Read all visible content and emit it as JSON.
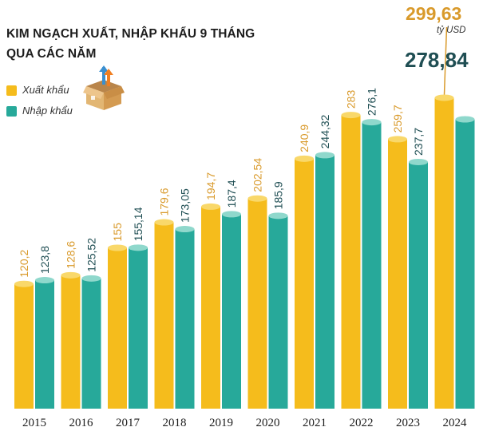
{
  "title_line1": "KIM NGẠCH XUẤT, NHẬP KHẨU 9 THÁNG",
  "title_line2": "QUA CÁC NĂM",
  "legend": {
    "export_label": "Xuất khẩu",
    "import_label": "Nhập khẩu"
  },
  "colors": {
    "export": "#F5BC1C",
    "export_top": "#F9D86A",
    "export_text": "#D99A2B",
    "import": "#27A99A",
    "import_top": "#8FD8CC",
    "import_text": "#1F4E53"
  },
  "highlight": {
    "export_value": "299,63",
    "unit": "tỷ USD",
    "import_value": "278,84"
  },
  "chart_data": {
    "type": "bar",
    "title": "KIM NGẠCH XUẤT, NHẬP KHẨU 9 THÁNG QUA CÁC NĂM",
    "unit": "tỷ USD",
    "categories": [
      "2015",
      "2016",
      "2017",
      "2018",
      "2019",
      "2020",
      "2021",
      "2022",
      "2023",
      "2024"
    ],
    "series": [
      {
        "name": "Xuất khẩu",
        "values": [
          120.2,
          128.6,
          155,
          179.6,
          194.7,
          202.54,
          240.9,
          283,
          259.7,
          299.63
        ],
        "labels": [
          "120,2",
          "128,6",
          "155",
          "179,6",
          "194,7",
          "202,54",
          "240,9",
          "283",
          "259,7",
          "299,63"
        ]
      },
      {
        "name": "Nhập khẩu",
        "values": [
          123.8,
          125.52,
          155.14,
          173.05,
          187.4,
          185.9,
          244.32,
          276.1,
          237.7,
          278.84
        ],
        "labels": [
          "123,8",
          "125,52",
          "155,14",
          "173,05",
          "187,4",
          "185,9",
          "244,32",
          "276,1",
          "237,7",
          "278,84"
        ]
      }
    ],
    "ylim": [
      0,
      300
    ],
    "grid": false,
    "legend_position": "left"
  }
}
